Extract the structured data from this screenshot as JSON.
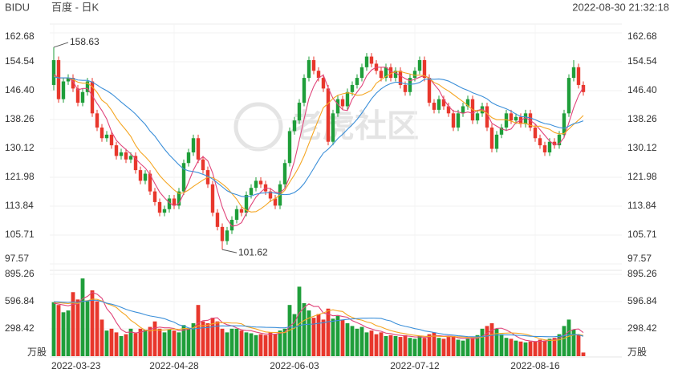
{
  "header": {
    "symbol": "BIDU",
    "name": "百度 - 日K",
    "timestamp": "2022-08-30 21:32:18",
    "watermark": "老虎社区"
  },
  "chart_data": {
    "type": "candlestick",
    "categories": [
      "2022-03-23",
      null,
      null,
      null,
      null,
      null,
      null,
      null,
      null,
      null,
      null,
      null,
      null,
      null,
      null,
      null,
      null,
      null,
      null,
      null,
      null,
      null,
      null,
      null,
      null,
      "2022-04-28",
      null,
      null,
      null,
      null,
      null,
      null,
      null,
      null,
      null,
      null,
      null,
      null,
      null,
      null,
      null,
      null,
      null,
      null,
      null,
      null,
      null,
      null,
      null,
      null,
      "2022-06-03",
      null,
      null,
      null,
      null,
      null,
      null,
      null,
      null,
      null,
      null,
      null,
      null,
      null,
      null,
      null,
      null,
      null,
      null,
      null,
      null,
      null,
      null,
      null,
      null,
      "2022-07-12",
      null,
      null,
      null,
      null,
      null,
      null,
      null,
      null,
      null,
      null,
      null,
      null,
      null,
      null,
      null,
      null,
      null,
      null,
      null,
      null,
      null,
      null,
      null,
      null,
      "2022-08-16",
      null,
      null,
      null,
      null,
      null,
      null,
      null,
      null,
      null,
      null
    ],
    "open": [
      148,
      155,
      144,
      149,
      150,
      147,
      143,
      146,
      149,
      140,
      136,
      133,
      134,
      131,
      128,
      129,
      127,
      128,
      124,
      121,
      123,
      118,
      115,
      112,
      113,
      116,
      114,
      118,
      126,
      129,
      133,
      127,
      124,
      120,
      112,
      108,
      104,
      107,
      110,
      113,
      112,
      117,
      119,
      121,
      120,
      118,
      116,
      114,
      120,
      126,
      135,
      138,
      143,
      150,
      155,
      152,
      150,
      147,
      132,
      140,
      144,
      142,
      146,
      148,
      150,
      153,
      156,
      154,
      152,
      150,
      153,
      150,
      152,
      148,
      146,
      150,
      152,
      155,
      150,
      143,
      141,
      144,
      142,
      140,
      136,
      140,
      142,
      144,
      138,
      140,
      142,
      136,
      130,
      134,
      136,
      140,
      138,
      139,
      137,
      140,
      136,
      133,
      131,
      129,
      132,
      131,
      134,
      140,
      150,
      153,
      148
    ],
    "high": [
      158.63,
      156,
      150,
      151,
      151,
      148,
      147,
      150,
      150,
      141,
      137,
      135,
      135,
      132,
      130,
      130,
      129,
      129,
      125,
      124,
      124,
      119,
      116,
      114,
      117,
      117,
      119,
      127,
      130,
      134,
      134,
      128,
      125,
      121,
      113,
      109,
      108,
      111,
      114,
      114,
      118,
      120,
      122,
      122,
      121,
      119,
      117,
      121,
      127,
      136,
      139,
      144,
      151,
      156,
      156,
      153,
      151,
      148,
      141,
      145,
      145,
      147,
      149,
      151,
      154,
      157,
      157,
      155,
      153,
      154,
      154,
      153,
      153,
      149,
      151,
      153,
      156,
      156,
      151,
      144,
      145,
      145,
      143,
      141,
      141,
      143,
      145,
      145,
      141,
      143,
      143,
      137,
      135,
      137,
      141,
      141,
      140,
      140,
      141,
      141,
      137,
      134,
      132,
      133,
      133,
      135,
      141,
      151,
      155,
      154,
      149
    ],
    "low": [
      146.5,
      143,
      143,
      148,
      146,
      142,
      142,
      145,
      139,
      135,
      132,
      132,
      130,
      127,
      127,
      126,
      126,
      123,
      120,
      120,
      117,
      114,
      111,
      111,
      112,
      113,
      113,
      117,
      125,
      128,
      126,
      123,
      119,
      111,
      107,
      101.62,
      103,
      106,
      109,
      111,
      111,
      116,
      118,
      119,
      117,
      115,
      113,
      113,
      119,
      125,
      134,
      137,
      142,
      149,
      151,
      149,
      146,
      131,
      131,
      139,
      141,
      141,
      145,
      147,
      149,
      152,
      153,
      151,
      149,
      149,
      149,
      149,
      147,
      145,
      145,
      149,
      151,
      149,
      142,
      140,
      140,
      141,
      139,
      135,
      135,
      139,
      141,
      137,
      137,
      139,
      135,
      129,
      129,
      133,
      135,
      137,
      137,
      136,
      136,
      135,
      132,
      130,
      128,
      128,
      130,
      130,
      133,
      139,
      149,
      147,
      145
    ],
    "close": [
      155,
      144,
      149,
      150,
      147,
      143,
      146,
      149,
      140,
      136,
      133,
      134,
      131,
      128,
      129,
      127,
      128,
      124,
      121,
      123,
      118,
      115,
      112,
      113,
      116,
      114,
      118,
      126,
      129,
      133,
      127,
      124,
      120,
      112,
      108,
      104,
      107,
      110,
      113,
      112,
      117,
      119,
      121,
      120,
      118,
      116,
      114,
      120,
      126,
      135,
      138,
      143,
      150,
      155,
      152,
      150,
      147,
      132,
      140,
      144,
      142,
      146,
      148,
      150,
      153,
      156,
      154,
      152,
      150,
      153,
      150,
      152,
      148,
      146,
      150,
      152,
      155,
      150,
      143,
      141,
      144,
      142,
      140,
      136,
      140,
      142,
      144,
      138,
      140,
      142,
      136,
      130,
      134,
      136,
      140,
      138,
      139,
      137,
      140,
      136,
      133,
      131,
      129,
      132,
      131,
      134,
      140,
      150,
      153,
      148,
      146
    ],
    "volume": [
      590,
      560,
      480,
      500,
      700,
      620,
      850,
      600,
      720,
      600,
      400,
      280,
      300,
      260,
      220,
      240,
      300,
      250,
      300,
      290,
      320,
      380,
      300,
      260,
      290,
      280,
      260,
      340,
      300,
      360,
      560,
      380,
      360,
      420,
      380,
      300,
      260,
      300,
      300,
      280,
      260,
      250,
      230,
      240,
      230,
      260,
      240,
      280,
      300,
      560,
      460,
      760,
      580,
      500,
      420,
      460,
      400,
      520,
      410,
      440,
      400,
      360,
      330,
      300,
      320,
      260,
      280,
      240,
      260,
      220,
      230,
      220,
      210,
      230,
      200,
      190,
      220,
      200,
      240,
      260,
      200,
      190,
      210,
      220,
      180,
      170,
      190,
      200,
      230,
      300,
      330,
      360,
      300,
      240,
      200,
      190,
      170,
      160,
      150,
      160,
      160,
      180,
      170,
      190,
      200,
      240,
      330,
      400,
      290,
      230,
      40
    ],
    "up_color": "#1f9e3a",
    "down_color": "#e8372c",
    "lines": [
      {
        "color": "#e0457b",
        "values": [
          151,
          150,
          150,
          150,
          149,
          146.6,
          147,
          147,
          145,
          142.8,
          140.8,
          138.4,
          134.8,
          132.4,
          131,
          129.8,
          128.6,
          127.2,
          125.8,
          124.6,
          122.8,
          120.2,
          117.8,
          116.2,
          114.8,
          114,
          114.6,
          117.4,
          120.6,
          124,
          126.6,
          127.8,
          126.6,
          123.2,
          118.2,
          113.6,
          110.2,
          108.2,
          108.4,
          109.2,
          111.8,
          114.2,
          116.4,
          117.8,
          119,
          118.8,
          117.8,
          117.6,
          118.8,
          122.2,
          126.6,
          132.4,
          138.4,
          144.2,
          147.6,
          150,
          150.8,
          147.2,
          144.2,
          142.6,
          141,
          140.8,
          144,
          146,
          147.8,
          150.6,
          152.2,
          153,
          153,
          153,
          151.8,
          151.4,
          150.6,
          149.8,
          149.2,
          149.6,
          150.2,
          150.6,
          150,
          148.2,
          146.6,
          144,
          142,
          140.6,
          140.4,
          140,
          140.4,
          140,
          140.8,
          141.2,
          140,
          137.2,
          136.4,
          135.6,
          135.2,
          135.6,
          137.4,
          138,
          138.8,
          138,
          137,
          135.4,
          133.8,
          132.2,
          131.2,
          131.4,
          133.2,
          137.4,
          141.6,
          145,
          147.4
        ]
      },
      {
        "color": "#f5a623",
        "values": [
          150.5,
          150,
          150,
          150,
          149.5,
          148.8,
          148.5,
          148.5,
          147.5,
          145.9,
          143.7,
          142.7,
          140.9,
          138.7,
          136.9,
          135.3,
          133.5,
          131,
          129.1,
          127.8,
          126.3,
          124.4,
          122.5,
          121,
          119.7,
          118.4,
          117.4,
          117.6,
          118.4,
          119.4,
          120.3,
          121.2,
          122,
          121.9,
          121.1,
          120.1,
          119,
          117.4,
          115.8,
          113.7,
          112.7,
          112.2,
          112.3,
          113.1,
          114.1,
          115.3,
          116,
          117,
          118.3,
          120.6,
          122.7,
          125.1,
          128,
          131.5,
          134.9,
          138.3,
          141.6,
          142.8,
          144.2,
          145.1,
          145.5,
          145.8,
          145.6,
          145.1,
          145.2,
          145.8,
          146.5,
          148.5,
          149.5,
          150.4,
          151.2,
          151.8,
          151.8,
          151.4,
          151.1,
          150.7,
          150.8,
          150.6,
          149.9,
          148.7,
          148.1,
          147.1,
          146.3,
          145.3,
          144.3,
          143.3,
          142.2,
          141,
          140.7,
          140.8,
          140,
          138.8,
          138.2,
          138.2,
          138.2,
          137.8,
          137.3,
          137.2,
          137.2,
          136.6,
          136.3,
          136.4,
          135.9,
          135.5,
          134.6,
          134.2,
          134.3,
          135.6,
          136.9,
          138.1,
          139.4
        ]
      },
      {
        "color": "#3b8fd9",
        "values": [
          150.3,
          150,
          150,
          150,
          149.8,
          149.4,
          149.3,
          149.3,
          148.8,
          148,
          147.1,
          146.4,
          145.5,
          144.4,
          143.2,
          142.1,
          141,
          139.8,
          138.3,
          136.9,
          135,
          133.6,
          131.7,
          129.9,
          128.3,
          126.9,
          125.5,
          124.3,
          123.8,
          123.6,
          123.3,
          122.8,
          122.3,
          121.5,
          120.4,
          119.3,
          118.2,
          117.5,
          117.1,
          116.6,
          116.5,
          116.7,
          117.2,
          117.5,
          117.6,
          117.7,
          117.5,
          117.2,
          117.1,
          117.2,
          117.7,
          118.7,
          120.2,
          122.3,
          124.5,
          126.8,
          128.8,
          129.9,
          131.3,
          132.9,
          134.1,
          135.5,
          136.8,
          138.3,
          140.1,
          142.1,
          144.1,
          145.7,
          146.9,
          147.8,
          148.4,
          148.8,
          148.7,
          148.3,
          148.2,
          148.3,
          148.7,
          149.6,
          149.7,
          149.6,
          149.7,
          149.5,
          149.1,
          148.4,
          147.7,
          147,
          146.5,
          145.8,
          145.3,
          144.8,
          144.1,
          143,
          142.3,
          141.8,
          141.3,
          140.6,
          139.8,
          139.1,
          139,
          138.7,
          138.2,
          137.6,
          137.1,
          136.9,
          136.4,
          136,
          135.8,
          136.4,
          137.1,
          137.4,
          137.9
        ]
      }
    ],
    "volume_lines": [
      {
        "color": "#e0457b",
        "values": [
          580,
          570,
          560,
          550,
          566,
          572,
          630,
          654,
          698,
          678,
          634,
          520,
          460,
          368,
          292,
          260,
          264,
          254,
          262,
          276,
          292,
          308,
          318,
          310,
          310,
          302,
          278,
          286,
          294,
          308,
          364,
          388,
          392,
          416,
          420,
          368,
          344,
          332,
          308,
          288,
          280,
          278,
          264,
          252,
          242,
          242,
          240,
          250,
          262,
          328,
          368,
          472,
          532,
          572,
          544,
          544,
          472,
          460,
          442,
          446,
          434,
          426,
          388,
          366,
          342,
          314,
          298,
          280,
          272,
          252,
          246,
          234,
          228,
          222,
          218,
          210,
          210,
          208,
          210,
          222,
          224,
          218,
          220,
          216,
          200,
          194,
          194,
          192,
          194,
          218,
          250,
          284,
          304,
          306,
          286,
          258,
          220,
          192,
          174,
          166,
          160,
          162,
          164,
          172,
          180,
          196,
          226,
          272,
          292,
          298,
          258
        ]
      },
      {
        "color": "#f5a623",
        "values": [
          590,
          585,
          580,
          575,
          583,
          576,
          600,
          607,
          624,
          622,
          603,
          575,
          557,
          533,
          485,
          447,
          392,
          357,
          315,
          284,
          276,
          286,
          286,
          286,
          293,
          297,
          293,
          302,
          302,
          309,
          333,
          333,
          339,
          355,
          364,
          366,
          366,
          362,
          362,
          354,
          324,
          311,
          298,
          280,
          265,
          261,
          259,
          257,
          257,
          285,
          305,
          356,
          391,
          417,
          436,
          456,
          472,
          496,
          507,
          495,
          489,
          449,
          424,
          404,
          394,
          374,
          362,
          334,
          319,
          297,
          280,
          266,
          254,
          247,
          235,
          228,
          222,
          218,
          216,
          220,
          217,
          214,
          214,
          213,
          211,
          209,
          206,
          206,
          205,
          209,
          222,
          239,
          248,
          250,
          252,
          254,
          252,
          248,
          240,
          226,
          209,
          191,
          178,
          173,
          173,
          178,
          194,
          218,
          232,
          239,
          227
        ]
      },
      {
        "color": "#3b8fd9",
        "values": [
          595,
          593,
          590,
          588,
          592,
          588,
          600,
          604,
          612,
          611,
          597,
          580,
          569,
          554,
          534,
          512,
          496,
          482,
          470,
          453,
          440,
          431,
          422,
          410,
          389,
          372,
          343,
          330,
          309,
          297,
          305,
          310,
          313,
          321,
          329,
          332,
          330,
          332,
          332,
          332,
          329,
          322,
          319,
          318,
          315,
          314,
          313,
          310,
          310,
          320,
          315,
          334,
          345,
          349,
          351,
          359,
          366,
          377,
          382,
          390,
          397,
          403,
          408,
          411,
          415,
          415,
          417,
          415,
          413,
          396,
          385,
          358,
          339,
          326,
          315,
          301,
          292,
          276,
          268,
          259,
          249,
          240,
          234,
          230,
          223,
          219,
          214,
          212,
          211,
          215,
          220,
          227,
          231,
          232,
          232,
          232,
          229,
          227,
          223,
          218,
          216,
          215,
          213,
          212,
          213,
          216,
          223,
          233,
          236,
          233,
          218
        ]
      }
    ],
    "ylim": [
      97.57,
      162.68
    ],
    "yticks": [
      97.57,
      {
        "value": 105.71,
        "label": "105.71"
      },
      {
        "value": 113.84,
        "label": "113.84"
      },
      {
        "value": 121.98,
        "label": "121.98"
      },
      {
        "value": 130.12,
        "label": "130.12"
      },
      {
        "value": 138.26,
        "label": "138.26"
      },
      {
        "value": 146.4,
        "label": "146.40"
      },
      {
        "value": 154.54,
        "label": "154.54"
      },
      162.68
    ],
    "volume_ylim": [
      0,
      895.26
    ],
    "volume_yticks": [
      298.42,
      596.84,
      895.26
    ],
    "volume_unit": "万股",
    "grid": true
  }
}
